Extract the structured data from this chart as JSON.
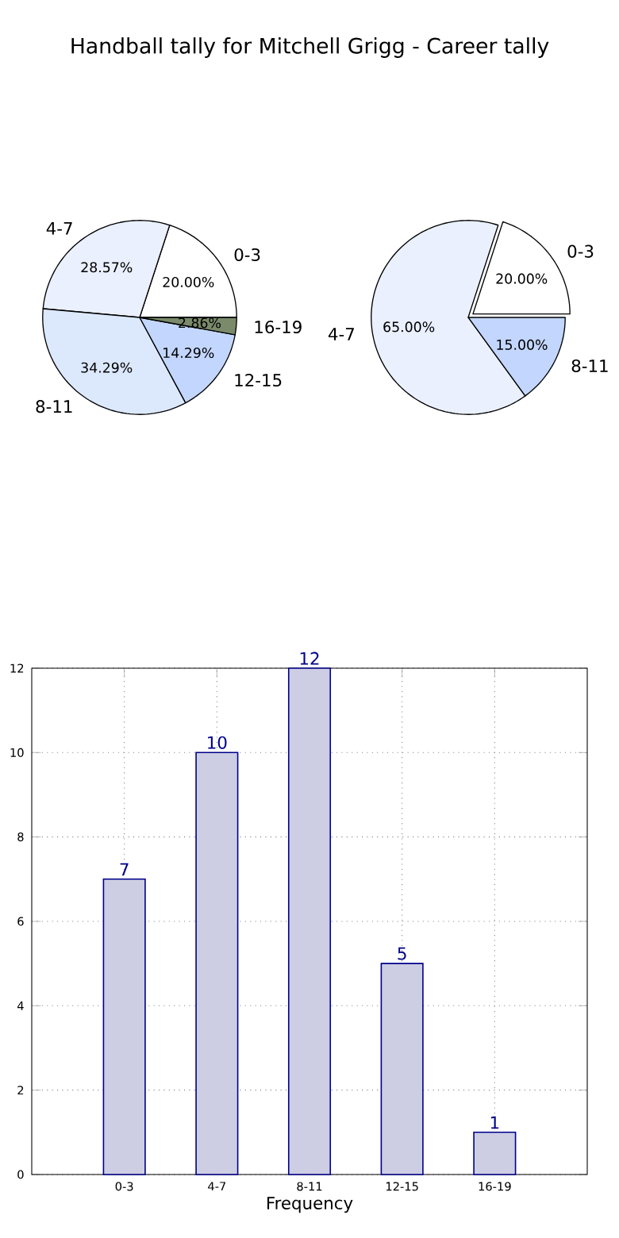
{
  "chart_data": [
    {
      "type": "pie",
      "title": "Handball tally for Mitchell Grigg - Career tally",
      "categories": [
        "0-3",
        "4-7",
        "8-11",
        "12-15",
        "16-19"
      ],
      "values": [
        20,
        28.57,
        34.29,
        14.29,
        2.86
      ],
      "value_labels": [
        "20.00%",
        "28.57%",
        "34.29%",
        "14.29%",
        "2.86%"
      ],
      "colors": [
        "#ffffff",
        "#eaf0fd",
        "#dce8fc",
        "#c3d6fd",
        "#7a8a6a"
      ]
    },
    {
      "type": "pie",
      "categories": [
        "0-3",
        "4-7",
        "8-11"
      ],
      "values": [
        20,
        65,
        15
      ],
      "value_labels": [
        "20.00%",
        "65.00%",
        "15.00%"
      ],
      "colors": [
        "#ffffff",
        "#eaf0fd",
        "#c3d6fd"
      ]
    },
    {
      "type": "bar",
      "categories": [
        "0-3",
        "4-7",
        "8-11",
        "12-15",
        "16-19"
      ],
      "values": [
        7,
        10,
        12,
        5,
        1
      ],
      "value_labels": [
        "7",
        "10",
        "12",
        "5",
        "1"
      ],
      "color": "#cdcde3",
      "xlabel": "Frequency",
      "ylim": [
        0,
        12
      ],
      "yticks": [
        0,
        2,
        4,
        6,
        8,
        10,
        12
      ],
      "grid": true
    }
  ]
}
